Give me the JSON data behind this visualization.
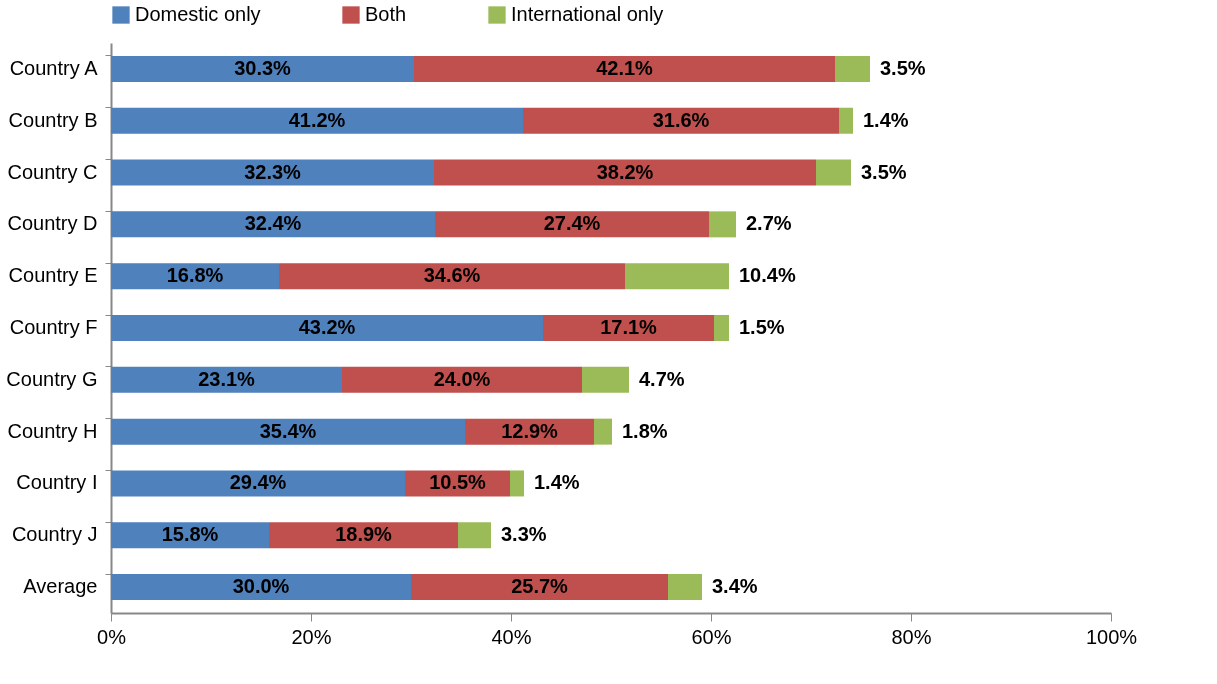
{
  "chart_data": {
    "type": "bar",
    "orientation": "horizontal",
    "stacked": true,
    "categories": [
      "Country A",
      "Country B",
      "Country C",
      "Country D",
      "Country E",
      "Country F",
      "Country G",
      "Country H",
      "Country I",
      "Country J",
      "Average"
    ],
    "series": [
      {
        "name": "Domestic only",
        "color": "#4f81bd",
        "values": [
          30.3,
          41.2,
          32.3,
          32.4,
          16.8,
          43.2,
          23.1,
          35.4,
          29.4,
          15.8,
          30.0
        ],
        "value_labels": [
          "30.3%",
          "41.2%",
          "32.3%",
          "32.4%",
          "16.8%",
          "43.2%",
          "23.1%",
          "35.4%",
          "29.4%",
          "15.8%",
          "30.0%"
        ]
      },
      {
        "name": "Both",
        "color": "#c0504d",
        "values": [
          42.1,
          31.6,
          38.2,
          27.4,
          34.6,
          17.1,
          24.0,
          12.9,
          10.5,
          18.9,
          25.7
        ],
        "value_labels": [
          "42.1%",
          "31.6%",
          "38.2%",
          "27.4%",
          "34.6%",
          "17.1%",
          "24.0%",
          "12.9%",
          "10.5%",
          "18.9%",
          "25.7%"
        ]
      },
      {
        "name": "International only",
        "color": "#9bbb59",
        "values": [
          3.5,
          1.4,
          3.5,
          2.7,
          10.4,
          1.5,
          4.7,
          1.8,
          1.4,
          3.3,
          3.4
        ],
        "value_labels": [
          "3.5%",
          "1.4%",
          "3.5%",
          "2.7%",
          "10.4%",
          "1.5%",
          "4.7%",
          "1.8%",
          "1.4%",
          "3.3%",
          "3.4%"
        ]
      }
    ],
    "xlim": [
      0,
      100
    ],
    "xticks": [
      {
        "value": 0,
        "label": "0%"
      },
      {
        "value": 20,
        "label": "20%"
      },
      {
        "value": 40,
        "label": "40%"
      },
      {
        "value": 60,
        "label": "60%"
      },
      {
        "value": 80,
        "label": "80%"
      },
      {
        "value": 100,
        "label": "100%"
      }
    ],
    "legend": "top",
    "grid": false
  }
}
